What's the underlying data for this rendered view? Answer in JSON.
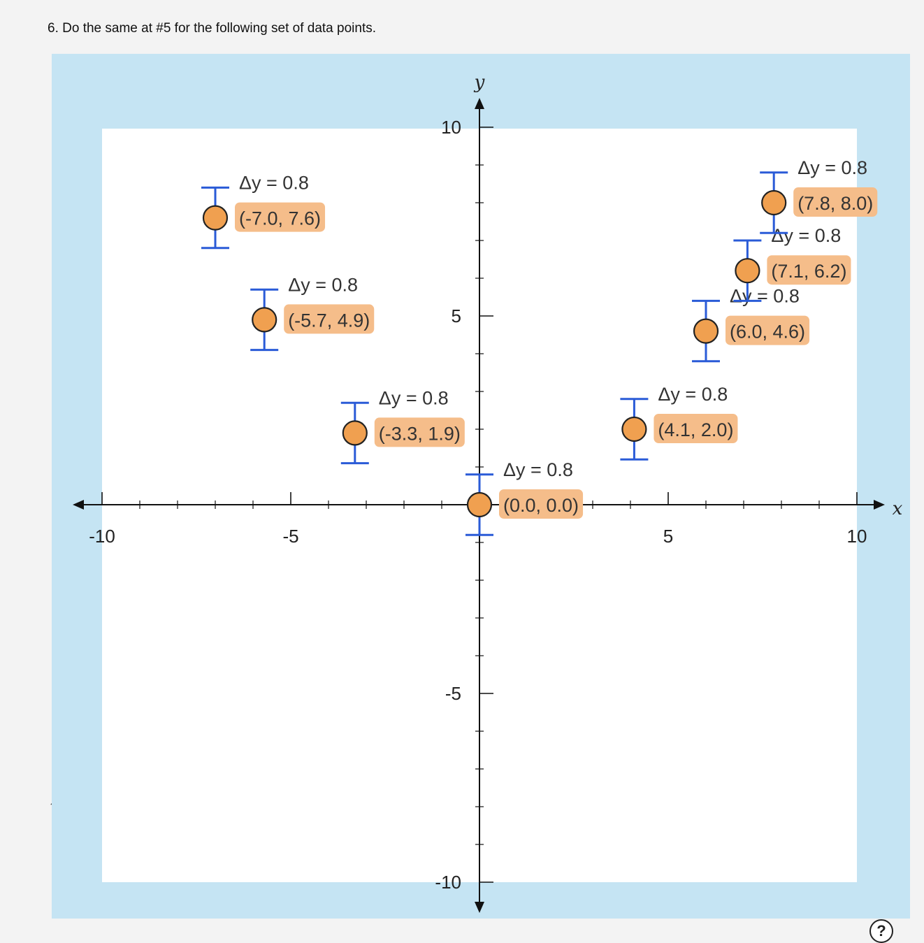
{
  "question": "6. Do the same at #5 for the following set of data points.",
  "help_icon": "question-circle-icon",
  "help_glyph": "?",
  "stray_mark": "ʔ",
  "colors": {
    "frame": "#c5e4f3",
    "plot_bg": "#ffffff",
    "axis": "#111111",
    "error_bar": "#2a5bd7",
    "point_fill": "#f0a050",
    "point_stroke": "#222222",
    "label_bg": "#f5bd8a"
  },
  "chart_data": {
    "type": "scatter",
    "xlabel": "x",
    "ylabel": "y",
    "xlim": [
      -10,
      10
    ],
    "ylim": [
      -10,
      10
    ],
    "x_ticks": [
      "-10",
      "-5",
      "5",
      "10"
    ],
    "y_ticks": [
      "10",
      "5",
      "-5",
      "-10"
    ],
    "points": [
      {
        "x": -7.0,
        "y": 7.6,
        "err": 0.8,
        "coord_label": "(-7.0, 7.6)",
        "err_label": "Δy = 0.8"
      },
      {
        "x": -5.7,
        "y": 4.9,
        "err": 0.8,
        "coord_label": "(-5.7, 4.9)",
        "err_label": "Δy = 0.8"
      },
      {
        "x": -3.3,
        "y": 1.9,
        "err": 0.8,
        "coord_label": "(-3.3, 1.9)",
        "err_label": "Δy = 0.8"
      },
      {
        "x": 0.0,
        "y": 0.0,
        "err": 0.8,
        "coord_label": "(0.0, 0.0)",
        "err_label": "Δy = 0.8"
      },
      {
        "x": 4.1,
        "y": 2.0,
        "err": 0.8,
        "coord_label": "(4.1, 2.0)",
        "err_label": "Δy = 0.8"
      },
      {
        "x": 6.0,
        "y": 4.6,
        "err": 0.8,
        "coord_label": "(6.0, 4.6)",
        "err_label": "Δy = 0.8"
      },
      {
        "x": 7.1,
        "y": 6.2,
        "err": 0.8,
        "coord_label": "(7.1, 6.2)",
        "err_label": "Δy = 0.8"
      },
      {
        "x": 7.8,
        "y": 8.0,
        "err": 0.8,
        "coord_label": "(7.8, 8.0)",
        "err_label": "Δy = 0.8"
      }
    ]
  }
}
